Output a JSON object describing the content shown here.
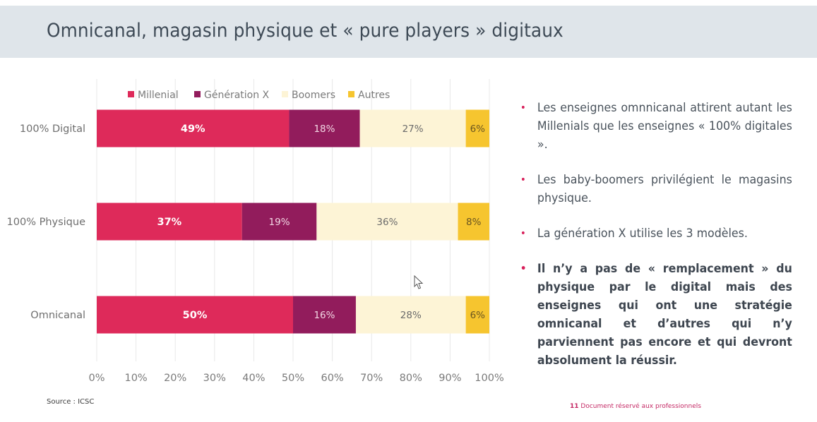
{
  "slide": {
    "title": "Omnicanal, magasin physique et « pure players » digitaux",
    "source": "Source : ICSC",
    "footer": {
      "page_number": "11",
      "text": "Document réservé aux professionnels"
    }
  },
  "bullets": [
    {
      "text": "Les enseignes omnnicanal attirent autant les Millenials que les enseignes « 100% digitales ».",
      "bold": false
    },
    {
      "text": "Les baby-boomers privilégient le magasins physique.",
      "bold": false
    },
    {
      "text": "La génération X utilise les 3 modèles.",
      "bold": false
    },
    {
      "text": "Il n’y a pas de « remplacement » du physique par le digital mais des enseignes qui ont une stratégie omnicanal et d’autres qui n’y parviennent pas encore et qui devront absolument la réussir.",
      "bold": true
    }
  ],
  "colors": {
    "accent": "#d81f5a",
    "millenial": "#de2a5a",
    "generation_x": "#921c5c",
    "boomers": "#fdf4d6",
    "autres": "#f6c52f"
  },
  "chart_data": {
    "type": "bar",
    "orientation": "horizontal",
    "stacked": true,
    "title": "",
    "xlabel": "",
    "ylabel": "",
    "xlim": [
      0,
      100
    ],
    "x_ticks": [
      "0%",
      "10%",
      "20%",
      "30%",
      "40%",
      "50%",
      "60%",
      "70%",
      "80%",
      "90%",
      "100%"
    ],
    "grid": true,
    "legend_position": "top",
    "categories": [
      "100% Digital",
      "100% Physique",
      "Omnicanal"
    ],
    "series": [
      {
        "name": "Millenial",
        "color": "#de2a5a",
        "label_color": "#ffffff",
        "label_bold": true,
        "values": [
          49,
          37,
          50
        ]
      },
      {
        "name": "Génération X",
        "color": "#921c5c",
        "label_color": "#f2d6e3",
        "label_bold": false,
        "values": [
          18,
          19,
          16
        ]
      },
      {
        "name": "Boomers",
        "color": "#fdf4d6",
        "label_color": "#6b6b6b",
        "label_bold": false,
        "values": [
          27,
          36,
          28
        ]
      },
      {
        "name": "Autres",
        "color": "#f6c52f",
        "label_color": "#6a5520",
        "label_bold": false,
        "values": [
          6,
          8,
          6
        ]
      }
    ]
  }
}
